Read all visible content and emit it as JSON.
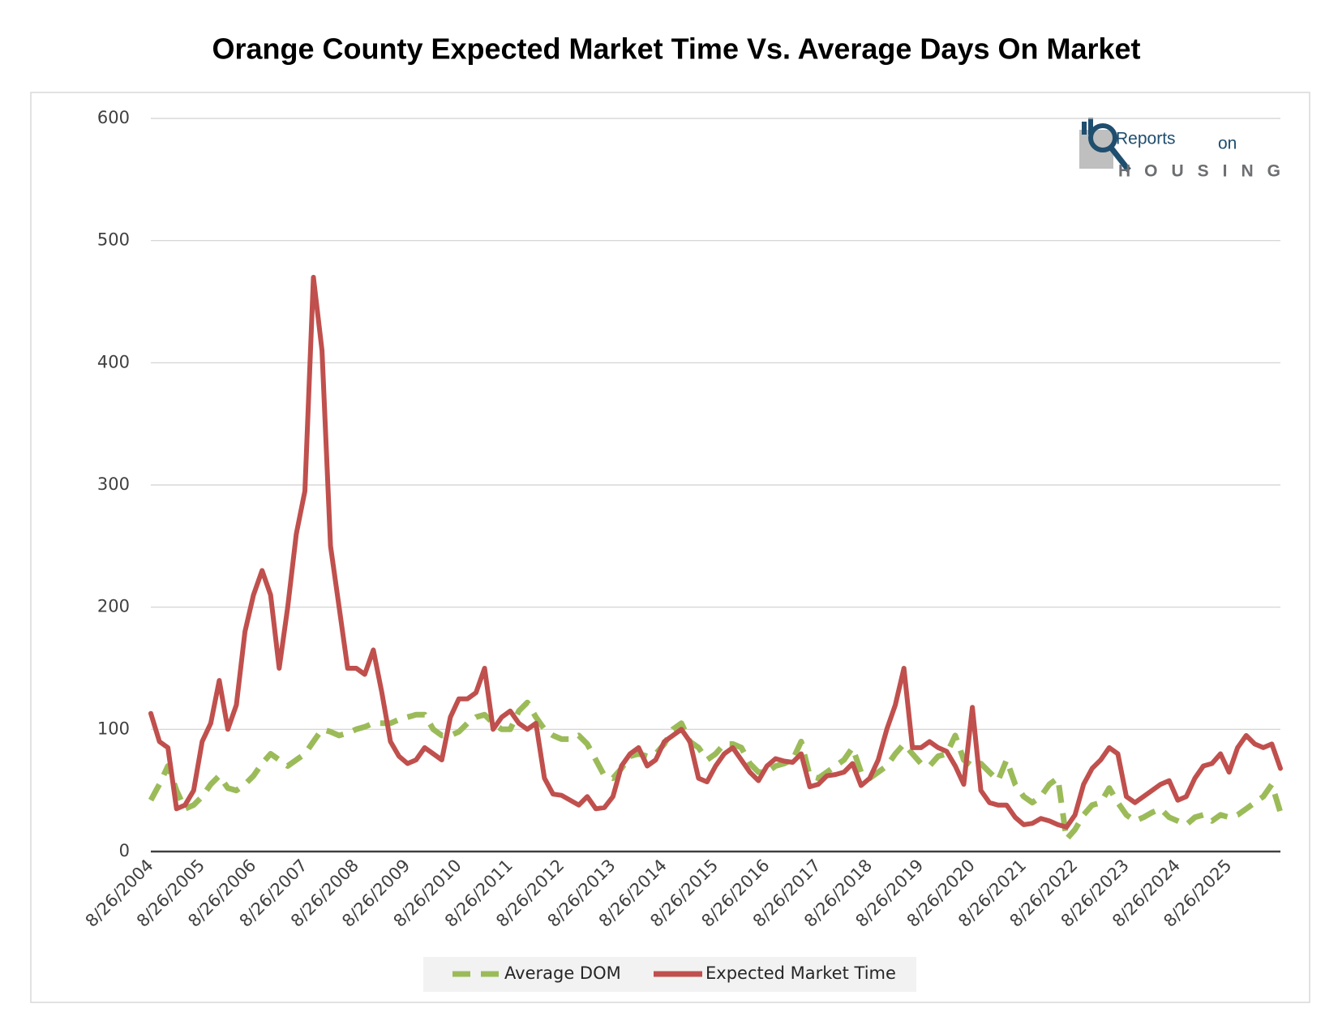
{
  "chart_data": {
    "type": "line",
    "title": "Orange County Expected Market Time Vs. Average Days On Market",
    "logo": {
      "main": "Reports",
      "small": "on",
      "bottom": "HOUSING"
    },
    "categories": [
      "8/26/2004",
      null,
      null,
      null,
      null,
      null,
      "8/26/2005",
      null,
      null,
      null,
      null,
      null,
      "8/26/2006",
      null,
      null,
      null,
      null,
      null,
      "8/26/2007",
      null,
      null,
      null,
      null,
      null,
      "8/26/2008",
      null,
      null,
      null,
      null,
      null,
      "8/26/2009",
      null,
      null,
      null,
      null,
      null,
      "8/26/2010",
      null,
      null,
      null,
      null,
      null,
      "8/26/2011",
      null,
      null,
      null,
      null,
      null,
      "8/26/2012",
      null,
      null,
      null,
      null,
      null,
      "8/26/2013",
      null,
      null,
      null,
      null,
      null,
      "8/26/2014",
      null,
      null,
      null,
      null,
      null,
      "8/26/2015",
      null,
      null,
      null,
      null,
      null,
      "8/26/2016",
      null,
      null,
      null,
      null,
      null,
      "8/26/2017",
      null,
      null,
      null,
      null,
      null,
      "8/26/2018",
      null,
      null,
      null,
      null,
      null,
      "8/26/2019",
      null,
      null,
      null,
      null,
      null,
      "8/26/2020",
      null,
      null,
      null,
      null,
      null,
      "8/26/2021",
      null,
      null,
      null,
      null,
      null,
      "8/26/2022",
      null,
      null,
      null,
      null,
      null,
      "8/26/2023",
      null,
      null,
      null,
      null,
      null,
      "8/26/2024",
      null,
      null,
      null,
      null,
      null,
      "8/26/2025",
      null,
      null,
      null,
      null,
      null,
      null
    ],
    "series": [
      {
        "name": "Average DOM",
        "color": "#9bbb59",
        "dashed": true,
        "values": [
          42,
          55,
          70,
          50,
          35,
          38,
          45,
          55,
          62,
          52,
          50,
          55,
          62,
          72,
          80,
          75,
          70,
          75,
          80,
          90,
          100,
          98,
          95,
          97,
          100,
          102,
          105,
          105,
          105,
          108,
          110,
          112,
          112,
          100,
          95,
          95,
          98,
          105,
          110,
          112,
          105,
          100,
          100,
          115,
          122,
          110,
          100,
          95,
          92,
          92,
          95,
          88,
          75,
          62,
          60,
          68,
          78,
          80,
          78,
          80,
          88,
          100,
          105,
          90,
          85,
          75,
          80,
          88,
          88,
          85,
          72,
          65,
          65,
          70,
          72,
          75,
          90,
          62,
          60,
          65,
          70,
          75,
          85,
          65,
          60,
          65,
          70,
          80,
          88,
          80,
          72,
          70,
          78,
          80,
          95,
          75,
          70,
          72,
          65,
          58,
          75,
          55,
          45,
          40,
          45,
          55,
          60,
          10,
          18,
          30,
          38,
          40,
          52,
          40,
          30,
          25,
          28,
          32,
          35,
          28,
          25,
          22,
          28,
          30,
          25,
          30,
          28,
          30,
          35,
          40,
          45,
          55,
          32
        ]
      },
      {
        "name": "Expected Market Time",
        "color": "#c0504d",
        "dashed": false,
        "values": [
          113,
          90,
          85,
          35,
          38,
          50,
          90,
          105,
          140,
          100,
          120,
          180,
          210,
          230,
          210,
          150,
          200,
          260,
          295,
          470,
          410,
          250,
          200,
          150,
          150,
          145,
          165,
          130,
          90,
          78,
          72,
          75,
          85,
          80,
          75,
          110,
          125,
          125,
          130,
          150,
          100,
          110,
          115,
          105,
          100,
          105,
          60,
          47,
          46,
          42,
          38,
          45,
          35,
          36,
          45,
          70,
          80,
          85,
          70,
          75,
          90,
          95,
          100,
          90,
          60,
          57,
          70,
          80,
          85,
          75,
          65,
          58,
          70,
          76,
          74,
          73,
          80,
          53,
          55,
          62,
          63,
          65,
          72,
          54,
          60,
          75,
          100,
          120,
          150,
          85,
          85,
          90,
          85,
          82,
          70,
          55,
          118,
          50,
          40,
          38,
          38,
          28,
          22,
          23,
          27,
          25,
          22,
          20,
          30,
          55,
          68,
          75,
          85,
          80,
          45,
          40,
          45,
          50,
          55,
          58,
          42,
          45,
          60,
          70,
          72,
          80,
          65,
          85,
          95,
          88,
          85,
          88,
          68
        ]
      }
    ],
    "ylim": [
      0,
      600
    ],
    "yticks": [
      0,
      100,
      200,
      300,
      400,
      500,
      600
    ],
    "grid": true,
    "legend": "bottom"
  }
}
